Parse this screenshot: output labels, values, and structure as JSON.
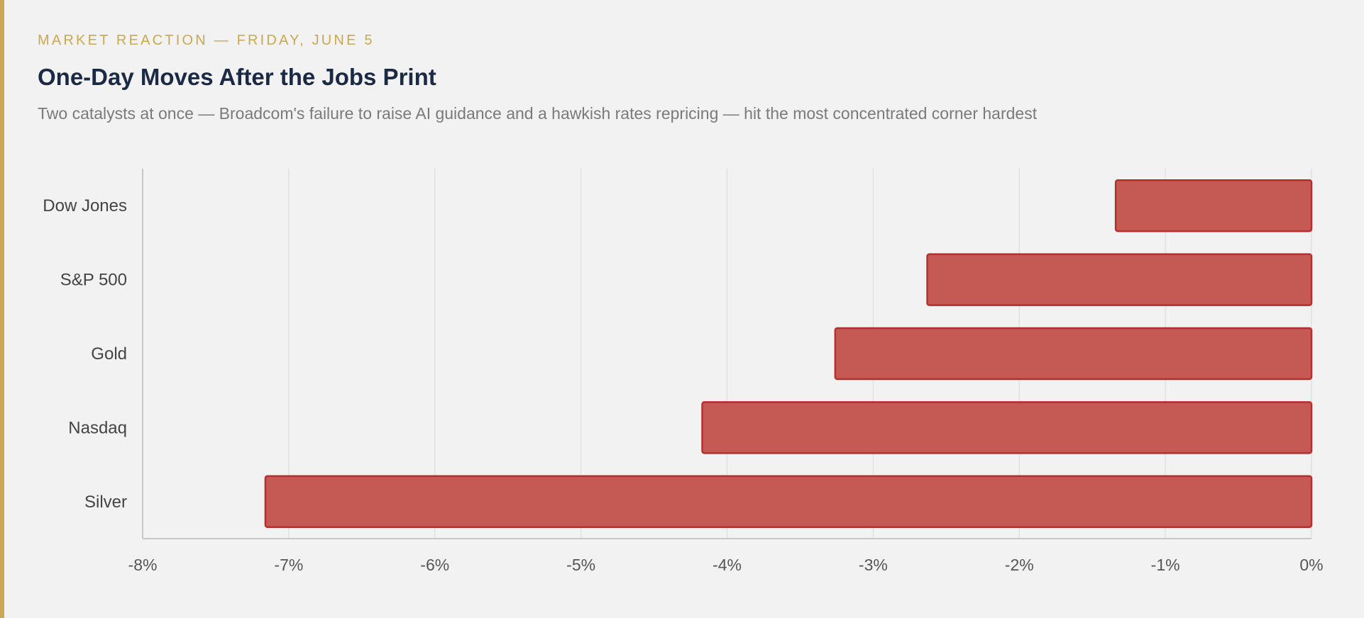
{
  "header": {
    "eyebrow": "MARKET REACTION — FRIDAY, JUNE 5",
    "title": "One-Day Moves After the Jobs Print",
    "subtitle": "Two catalysts at once — Broadcom's failure to raise AI guidance and a hawkish rates repricing — hit the most concentrated corner hardest"
  },
  "colors": {
    "accent": "#c8a951",
    "title": "#1b2a44",
    "bar_fill": "#c55a55",
    "bar_stroke": "#b5302c",
    "grid": "#dddddd",
    "axis": "#c8c8c8"
  },
  "chart_data": {
    "type": "bar",
    "orientation": "horizontal",
    "categories": [
      "Dow Jones",
      "S&P 500",
      "Gold",
      "Nasdaq",
      "Silver"
    ],
    "values": [
      -1.34,
      -2.63,
      -3.26,
      -4.17,
      -7.16
    ],
    "xlim": [
      -8,
      0
    ],
    "xticks": [
      -8,
      -7,
      -6,
      -5,
      -4,
      -3,
      -2,
      -1,
      0
    ],
    "xtick_labels": [
      "-8%",
      "-7%",
      "-6%",
      "-5%",
      "-4%",
      "-3%",
      "-2%",
      "-1%",
      "0%"
    ],
    "grid": true,
    "title": "",
    "xlabel": "",
    "ylabel": ""
  }
}
